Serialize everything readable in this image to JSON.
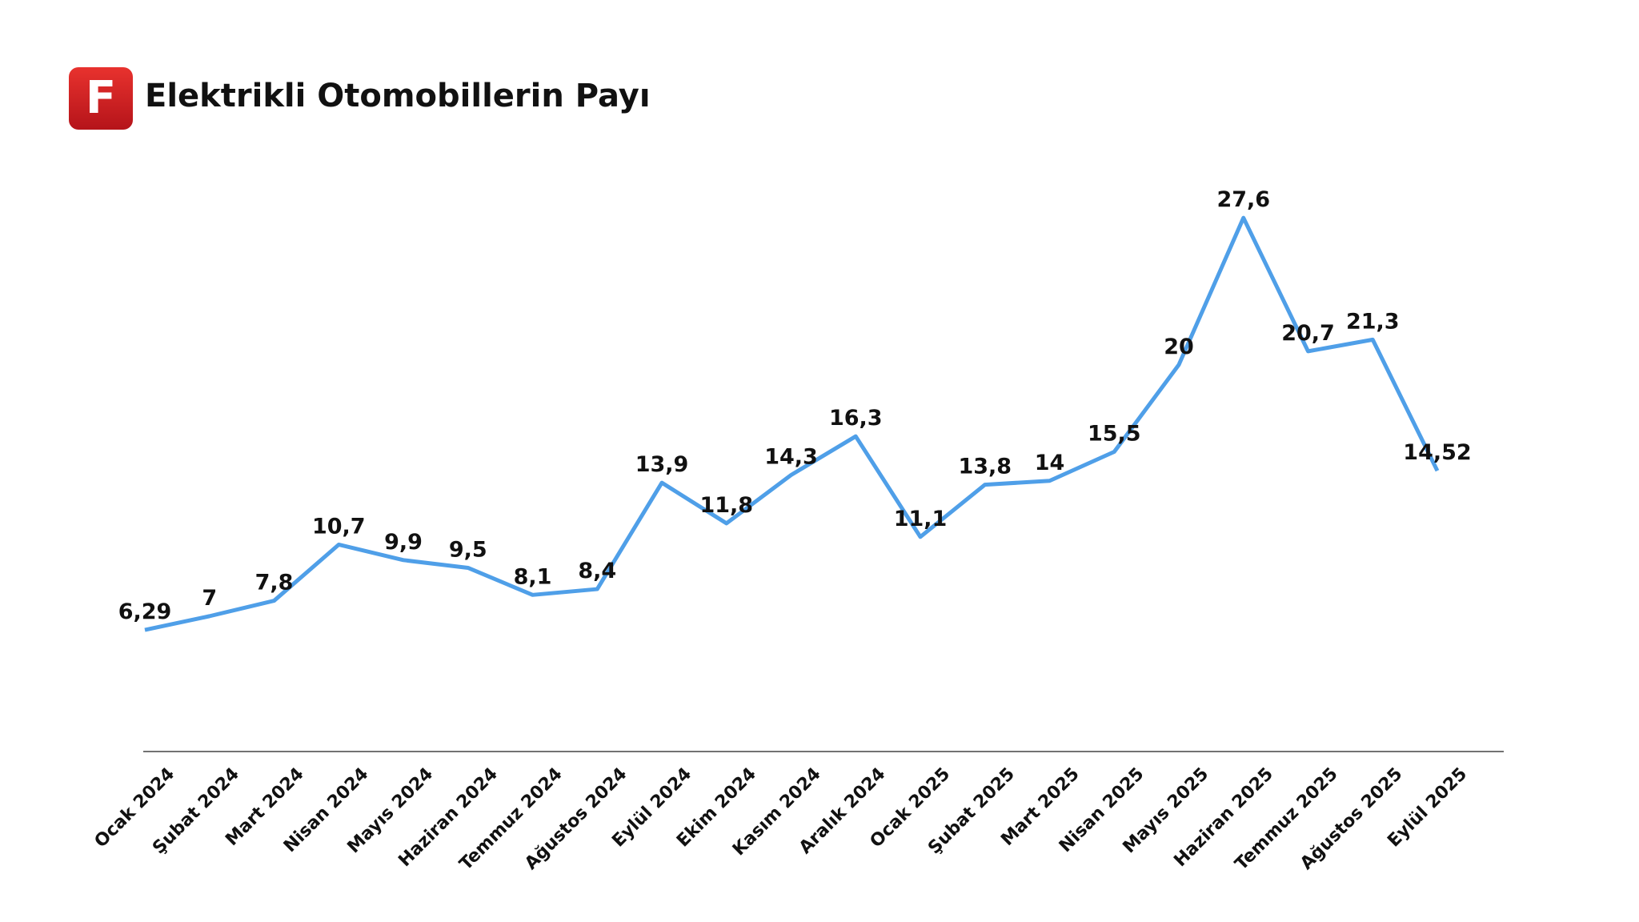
{
  "logo": "F",
  "chart_data": {
    "type": "line",
    "title": "Elektrikli Otomobillerin Payı",
    "categories": [
      "Ocak 2024",
      "Şubat 2024",
      "Mart 2024",
      "Nisan 2024",
      "Mayıs 2024",
      "Haziran 2024",
      "Temmuz 2024",
      "Ağustos 2024",
      "Eylül 2024",
      "Ekim 2024",
      "Kasım 2024",
      "Aralık 2024",
      "Ocak 2025",
      "Şubat 2025",
      "Mart 2025",
      "Nisan 2025",
      "Mayıs 2025",
      "Haziran 2025",
      "Temmuz 2025",
      "Ağustos 2025",
      "Eylül 2025"
    ],
    "series": [
      {
        "color": "#4f9fe8",
        "values": [
          6.29,
          7,
          7.8,
          10.7,
          9.9,
          9.5,
          8.1,
          8.4,
          13.9,
          11.8,
          14.3,
          16.3,
          11.1,
          13.8,
          14,
          15.5,
          20,
          27.6,
          20.7,
          21.3,
          14.52
        ],
        "value_labels": [
          "6,29",
          "7",
          "7,8",
          "10,7",
          "9,9",
          "9,5",
          "8,1",
          "8,4",
          "13,9",
          "11,8",
          "14,3",
          "16,3",
          "11,1",
          "13,8",
          "14",
          "15,5",
          "20",
          "27,6",
          "20,7",
          "21,3",
          "14,52"
        ]
      }
    ]
  }
}
